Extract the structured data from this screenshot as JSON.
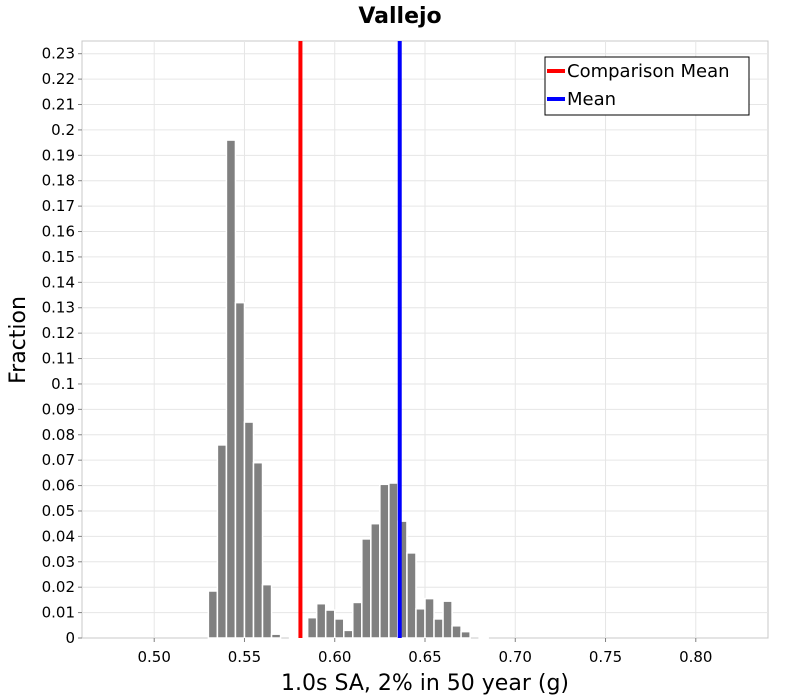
{
  "chart_data": {
    "type": "histogram",
    "title": "Vallejo",
    "xlabel": "1.0s SA, 2% in 50 year (g)",
    "ylabel": "Fraction",
    "xlim": [
      0.46,
      0.84
    ],
    "ylim": [
      0,
      0.235
    ],
    "x_ticks": [
      "0.50",
      "0.55",
      "0.60",
      "0.65",
      "0.70",
      "0.75",
      "0.80"
    ],
    "x_tick_values": [
      0.5,
      0.55,
      0.6,
      0.65,
      0.7,
      0.75,
      0.8
    ],
    "y_ticks": [
      "0",
      "0.01",
      "0.02",
      "0.03",
      "0.04",
      "0.05",
      "0.06",
      "0.07",
      "0.08",
      "0.09",
      "0.1",
      "0.11",
      "0.12",
      "0.13",
      "0.14",
      "0.15",
      "0.16",
      "0.17",
      "0.18",
      "0.19",
      "0.2",
      "0.21",
      "0.22",
      "0.23"
    ],
    "y_tick_values": [
      0,
      0.01,
      0.02,
      0.03,
      0.04,
      0.05,
      0.06,
      0.07,
      0.08,
      0.09,
      0.1,
      0.11,
      0.12,
      0.13,
      0.14,
      0.15,
      0.16,
      0.17,
      0.18,
      0.19,
      0.2,
      0.21,
      0.22,
      0.23
    ],
    "bin_width": 0.005,
    "bins": [
      {
        "x": 0.5325,
        "y": 0.0185
      },
      {
        "x": 0.5375,
        "y": 0.076
      },
      {
        "x": 0.5425,
        "y": 0.196
      },
      {
        "x": 0.5475,
        "y": 0.132
      },
      {
        "x": 0.5525,
        "y": 0.085
      },
      {
        "x": 0.5575,
        "y": 0.069
      },
      {
        "x": 0.5625,
        "y": 0.021
      },
      {
        "x": 0.5675,
        "y": 0.0015
      },
      {
        "x": 0.5775,
        "y": 0.0005
      },
      {
        "x": 0.5825,
        "y": 0.0005
      },
      {
        "x": 0.5875,
        "y": 0.008
      },
      {
        "x": 0.5925,
        "y": 0.0135
      },
      {
        "x": 0.5975,
        "y": 0.011
      },
      {
        "x": 0.6025,
        "y": 0.0075
      },
      {
        "x": 0.6075,
        "y": 0.003
      },
      {
        "x": 0.6125,
        "y": 0.014
      },
      {
        "x": 0.6175,
        "y": 0.039
      },
      {
        "x": 0.6225,
        "y": 0.045
      },
      {
        "x": 0.6275,
        "y": 0.0605
      },
      {
        "x": 0.6325,
        "y": 0.061
      },
      {
        "x": 0.6375,
        "y": 0.046
      },
      {
        "x": 0.6425,
        "y": 0.0335
      },
      {
        "x": 0.6475,
        "y": 0.0115
      },
      {
        "x": 0.6525,
        "y": 0.0155
      },
      {
        "x": 0.6575,
        "y": 0.0075
      },
      {
        "x": 0.6625,
        "y": 0.0145
      },
      {
        "x": 0.6675,
        "y": 0.0048
      },
      {
        "x": 0.6725,
        "y": 0.0025
      },
      {
        "x": 0.6825,
        "y": 0.0005
      }
    ],
    "bar_color": "#808080",
    "vlines": [
      {
        "name": "Comparison Mean",
        "x": 0.581,
        "color": "#ff0000"
      },
      {
        "name": "Mean",
        "x": 0.636,
        "color": "#0000ff"
      }
    ],
    "legend": {
      "position": "top-right",
      "entries": [
        {
          "label": "Comparison Mean",
          "color": "#ff0000"
        },
        {
          "label": "Mean",
          "color": "#0000ff"
        }
      ]
    },
    "grid": true
  }
}
